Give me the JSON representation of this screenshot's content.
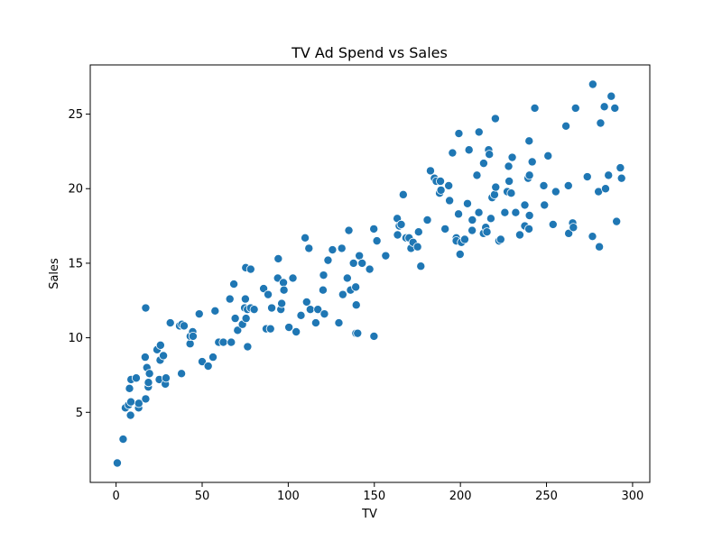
{
  "chart_data": {
    "type": "scatter",
    "title": "TV Ad Spend vs Sales",
    "xlabel": "TV",
    "ylabel": "Sales",
    "xlim": [
      -15,
      310
    ],
    "ylim": [
      0.3,
      28.3
    ],
    "xticks": [
      0,
      50,
      100,
      150,
      200,
      250,
      300
    ],
    "yticks": [
      5,
      10,
      15,
      20,
      25
    ],
    "grid": false,
    "point_color": "#1f77b4",
    "point_edge_color": "#ffffff",
    "points": [
      [
        0.7,
        1.6
      ],
      [
        4.1,
        3.2
      ],
      [
        5.4,
        5.3
      ],
      [
        7.3,
        5.5
      ],
      [
        8.4,
        4.8
      ],
      [
        8.6,
        5.7
      ],
      [
        7.8,
        6.6
      ],
      [
        8.7,
        7.2
      ],
      [
        11.7,
        7.3
      ],
      [
        13.1,
        5.3
      ],
      [
        13.2,
        5.6
      ],
      [
        16.9,
        8.7
      ],
      [
        17.2,
        5.9
      ],
      [
        17.2,
        12.0
      ],
      [
        17.9,
        8.0
      ],
      [
        18.7,
        6.7
      ],
      [
        18.8,
        7.0
      ],
      [
        19.4,
        7.6
      ],
      [
        23.8,
        9.2
      ],
      [
        25.1,
        7.2
      ],
      [
        25.6,
        8.5
      ],
      [
        25.8,
        9.5
      ],
      [
        27.5,
        8.8
      ],
      [
        28.6,
        6.9
      ],
      [
        29.0,
        7.3
      ],
      [
        31.5,
        11.0
      ],
      [
        36.9,
        10.8
      ],
      [
        38.0,
        7.6
      ],
      [
        38.2,
        10.9
      ],
      [
        39.5,
        10.8
      ],
      [
        43.0,
        9.6
      ],
      [
        43.1,
        10.1
      ],
      [
        44.5,
        10.4
      ],
      [
        44.7,
        10.1
      ],
      [
        48.3,
        11.6
      ],
      [
        50.0,
        8.4
      ],
      [
        53.5,
        8.1
      ],
      [
        56.3,
        8.7
      ],
      [
        57.5,
        11.8
      ],
      [
        59.6,
        9.7
      ],
      [
        62.3,
        9.7
      ],
      [
        66.1,
        12.6
      ],
      [
        66.9,
        9.7
      ],
      [
        68.4,
        13.6
      ],
      [
        69.2,
        11.3
      ],
      [
        70.6,
        10.5
      ],
      [
        73.4,
        10.9
      ],
      [
        74.7,
        12.0
      ],
      [
        75.1,
        12.6
      ],
      [
        75.3,
        14.7
      ],
      [
        75.5,
        11.3
      ],
      [
        76.3,
        11.9
      ],
      [
        76.4,
        9.4
      ],
      [
        78.2,
        14.6
      ],
      [
        78.2,
        12.0
      ],
      [
        80.2,
        11.9
      ],
      [
        85.7,
        13.3
      ],
      [
        87.2,
        10.6
      ],
      [
        88.3,
        12.9
      ],
      [
        89.7,
        10.6
      ],
      [
        90.4,
        12.0
      ],
      [
        93.9,
        14.0
      ],
      [
        94.2,
        15.3
      ],
      [
        95.7,
        11.9
      ],
      [
        96.2,
        12.3
      ],
      [
        97.2,
        13.7
      ],
      [
        97.5,
        13.2
      ],
      [
        100.4,
        10.7
      ],
      [
        102.7,
        14.0
      ],
      [
        104.6,
        10.4
      ],
      [
        107.4,
        11.5
      ],
      [
        109.8,
        16.7
      ],
      [
        110.7,
        12.4
      ],
      [
        112.0,
        16.0
      ],
      [
        112.8,
        11.9
      ],
      [
        116.0,
        11.0
      ],
      [
        117.2,
        11.9
      ],
      [
        120.2,
        13.2
      ],
      [
        120.5,
        14.2
      ],
      [
        121.0,
        11.6
      ],
      [
        123.1,
        15.2
      ],
      [
        125.7,
        15.9
      ],
      [
        129.4,
        11.0
      ],
      [
        131.1,
        16.0
      ],
      [
        131.7,
        12.9
      ],
      [
        134.3,
        14.0
      ],
      [
        135.2,
        17.2
      ],
      [
        136.2,
        13.2
      ],
      [
        137.9,
        15.0
      ],
      [
        139.2,
        13.4
      ],
      [
        139.3,
        10.3
      ],
      [
        139.5,
        12.2
      ],
      [
        140.3,
        10.3
      ],
      [
        141.3,
        15.5
      ],
      [
        142.9,
        15.0
      ],
      [
        147.3,
        14.6
      ],
      [
        149.7,
        17.3
      ],
      [
        149.8,
        10.1
      ],
      [
        151.5,
        16.5
      ],
      [
        156.6,
        15.5
      ],
      [
        163.3,
        18.0
      ],
      [
        163.5,
        16.9
      ],
      [
        164.5,
        17.5
      ],
      [
        165.6,
        17.6
      ],
      [
        166.8,
        19.6
      ],
      [
        168.4,
        16.7
      ],
      [
        170.2,
        16.7
      ],
      [
        171.3,
        16.0
      ],
      [
        172.5,
        16.4
      ],
      [
        175.1,
        16.1
      ],
      [
        175.7,
        17.1
      ],
      [
        177.0,
        14.8
      ],
      [
        180.8,
        17.9
      ],
      [
        182.6,
        21.2
      ],
      [
        184.9,
        20.7
      ],
      [
        186.0,
        20.5
      ],
      [
        187.9,
        19.7
      ],
      [
        188.4,
        20.5
      ],
      [
        188.7,
        19.9
      ],
      [
        191.1,
        17.3
      ],
      [
        193.2,
        20.2
      ],
      [
        193.7,
        19.2
      ],
      [
        195.4,
        22.4
      ],
      [
        197.6,
        16.7
      ],
      [
        197.6,
        16.5
      ],
      [
        198.9,
        18.3
      ],
      [
        199.1,
        23.7
      ],
      [
        199.8,
        15.6
      ],
      [
        200.6,
        16.4
      ],
      [
        202.5,
        16.6
      ],
      [
        204.1,
        19.0
      ],
      [
        205.0,
        22.6
      ],
      [
        206.8,
        17.2
      ],
      [
        206.9,
        17.9
      ],
      [
        209.6,
        20.9
      ],
      [
        210.7,
        18.4
      ],
      [
        210.8,
        23.8
      ],
      [
        213.4,
        17.0
      ],
      [
        213.5,
        21.7
      ],
      [
        214.7,
        17.4
      ],
      [
        215.4,
        17.1
      ],
      [
        216.4,
        22.6
      ],
      [
        216.8,
        22.3
      ],
      [
        217.7,
        18.0
      ],
      [
        218.4,
        19.4
      ],
      [
        219.8,
        19.6
      ],
      [
        220.3,
        24.7
      ],
      [
        220.5,
        20.1
      ],
      [
        222.4,
        16.5
      ],
      [
        223.4,
        16.6
      ],
      [
        225.8,
        18.4
      ],
      [
        227.2,
        19.8
      ],
      [
        228.0,
        21.5
      ],
      [
        228.3,
        20.5
      ],
      [
        229.5,
        19.7
      ],
      [
        230.1,
        22.1
      ],
      [
        232.1,
        18.4
      ],
      [
        234.5,
        16.9
      ],
      [
        237.4,
        18.9
      ],
      [
        237.4,
        17.5
      ],
      [
        239.3,
        20.7
      ],
      [
        239.8,
        17.3
      ],
      [
        239.9,
        23.2
      ],
      [
        240.1,
        18.2
      ],
      [
        240.1,
        20.9
      ],
      [
        241.7,
        21.8
      ],
      [
        243.2,
        25.4
      ],
      [
        248.4,
        20.2
      ],
      [
        248.8,
        18.9
      ],
      [
        250.9,
        22.2
      ],
      [
        253.8,
        17.6
      ],
      [
        255.4,
        19.8
      ],
      [
        261.3,
        24.2
      ],
      [
        262.7,
        20.2
      ],
      [
        262.9,
        17.0
      ],
      [
        265.2,
        17.7
      ],
      [
        265.6,
        17.4
      ],
      [
        266.9,
        25.4
      ],
      [
        273.7,
        20.8
      ],
      [
        276.7,
        16.8
      ],
      [
        276.9,
        27.0
      ],
      [
        280.2,
        19.8
      ],
      [
        280.7,
        16.1
      ],
      [
        281.4,
        24.4
      ],
      [
        283.6,
        25.5
      ],
      [
        284.3,
        20.0
      ],
      [
        286.0,
        20.9
      ],
      [
        287.6,
        26.2
      ],
      [
        289.7,
        25.4
      ],
      [
        290.7,
        17.8
      ],
      [
        292.9,
        21.4
      ],
      [
        293.6,
        20.7
      ]
    ]
  }
}
